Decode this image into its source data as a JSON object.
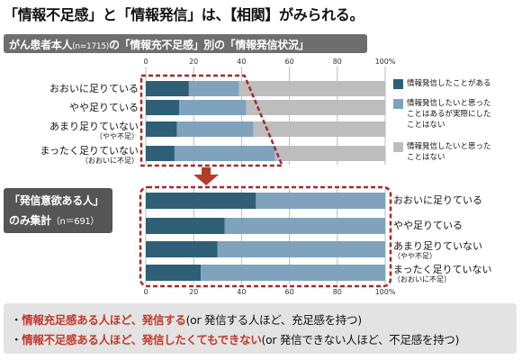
{
  "title": "「情報不足感」と「情報発信」は、【相関】がみられる。",
  "subtitle": {
    "main": "がん患者本人",
    "n": "(n=1715)",
    "rest": "の「情報充不足感」別の「情報発信状況」"
  },
  "colors": {
    "series1": "#2e5f77",
    "series2": "#7fa3bd",
    "series3": "#bdbdbd",
    "accent": "#c0392b",
    "dash": "#a52a2a"
  },
  "legend": [
    {
      "lines": [
        "情報発信したことがある"
      ]
    },
    {
      "lines": [
        "情報発信したいと思った",
        "ことはあるが実際にした",
        "ことはない"
      ]
    },
    {
      "lines": [
        "情報発信したいと思った",
        "ことはない"
      ]
    }
  ],
  "box_label": {
    "line1": "「発信意欲ある人」",
    "line2": "のみ集計",
    "n": "（n＝691）"
  },
  "notes": [
    {
      "emph": "情報充足感ある人ほど、発信する",
      "normal": "(or 発信する人ほど、充足感を持つ)"
    },
    {
      "emph": "情報不足感ある人ほど、発信したくてもできない",
      "normal": "(or 発信できない人ほど、不足感を持つ)"
    }
  ],
  "chart_data": [
    {
      "type": "bar",
      "orientation": "horizontal",
      "stacked": true,
      "categories": [
        {
          "main": "おおいに足りている",
          "sub": ""
        },
        {
          "main": "やや足りている",
          "sub": ""
        },
        {
          "main": "あまり足りていない",
          "sub": "（やや不足）"
        },
        {
          "main": "まったく足りていない",
          "sub": "（おおいに不足）"
        }
      ],
      "series": [
        {
          "name": "情報発信したことがある",
          "values": [
            18,
            14,
            13,
            12
          ]
        },
        {
          "name": "情報発信したいと思ったことはあるが実際にしたことはない",
          "values": [
            21,
            28,
            32,
            42
          ]
        },
        {
          "name": "情報発信したいと思ったことはない",
          "values": [
            61,
            58,
            55,
            46
          ]
        }
      ],
      "xlim": [
        0,
        100
      ],
      "ticks": [
        "0",
        "20",
        "40",
        "60",
        "80",
        "100%"
      ],
      "grid": true
    },
    {
      "type": "bar",
      "orientation": "horizontal",
      "stacked": true,
      "categories": [
        {
          "main": "おおいに足りている",
          "sub": ""
        },
        {
          "main": "やや足りている",
          "sub": ""
        },
        {
          "main": "あまり足りていない",
          "sub": "（やや不足）"
        },
        {
          "main": "まったく足りていない",
          "sub": "（おおいに不足）"
        }
      ],
      "series": [
        {
          "name": "情報発信したことがある",
          "values": [
            46,
            33,
            30,
            23
          ]
        },
        {
          "name": "情報発信したいと思ったことはあるが実際にしたことはない",
          "values": [
            54,
            67,
            70,
            77
          ]
        }
      ],
      "xlim": [
        0,
        100
      ],
      "ticks": [
        "0",
        "20",
        "40",
        "60",
        "80",
        "100%"
      ],
      "grid": true
    }
  ]
}
